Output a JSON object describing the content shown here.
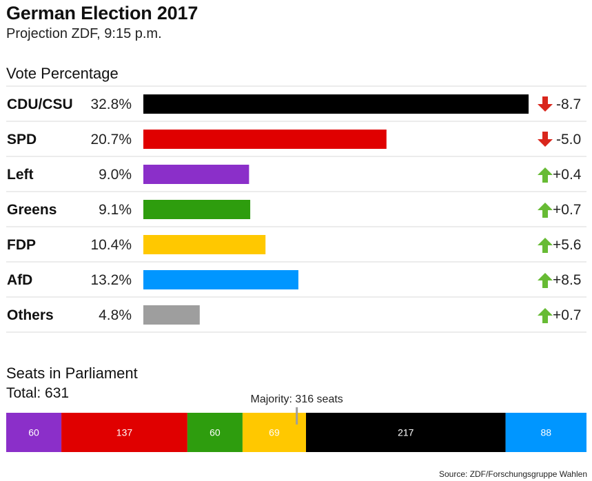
{
  "header": {
    "title": "German Election 2017",
    "subtitle": "Projection ZDF, 9:15 p.m."
  },
  "source": "Source: ZDF/Forschungsgruppe Wahlen",
  "chart_data": [
    {
      "type": "bar",
      "title": "Vote Percentage",
      "categories": [
        "CDU/CSU",
        "SPD",
        "Left",
        "Greens",
        "FDP",
        "AfD",
        "Others"
      ],
      "values": [
        32.8,
        20.7,
        9.0,
        9.1,
        10.4,
        13.2,
        4.8
      ],
      "value_labels": [
        "32.8%",
        "20.7%",
        "9.0%",
        "9.1%",
        "10.4%",
        "13.2%",
        "4.8%"
      ],
      "changes": [
        -8.7,
        -5.0,
        0.4,
        0.7,
        5.6,
        8.5,
        0.7
      ],
      "change_labels": [
        "-8.7",
        "-5.0",
        "+0.4",
        "+0.7",
        "+5.6",
        "+8.5",
        "+0.7"
      ],
      "colors": [
        "#000000",
        "#e00000",
        "#8b2fc9",
        "#2e9d0e",
        "#ffc800",
        "#0096ff",
        "#9e9e9e"
      ],
      "arrow_colors": {
        "down": "#d9261c",
        "up": "#67bb34"
      },
      "xlim": [
        0,
        32.8
      ],
      "grid": false
    },
    {
      "type": "bar",
      "title": "Seats in Parliament",
      "subtitle": "Total: 631",
      "total": 631,
      "majority": 316,
      "majority_label": "Majority: 316 seats",
      "segments": [
        {
          "party": "Left",
          "value": 60,
          "label": "60",
          "color": "#8b2fc9"
        },
        {
          "party": "SPD",
          "value": 137,
          "label": "137",
          "color": "#e00000"
        },
        {
          "party": "Greens",
          "value": 60,
          "label": "60",
          "color": "#2e9d0e"
        },
        {
          "party": "FDP",
          "value": 69,
          "label": "69",
          "color": "#ffc800"
        },
        {
          "party": "CDU/CSU",
          "value": 217,
          "label": "217",
          "color": "#000000"
        },
        {
          "party": "AfD",
          "value": 88,
          "label": "88",
          "color": "#0096ff"
        }
      ]
    }
  ]
}
